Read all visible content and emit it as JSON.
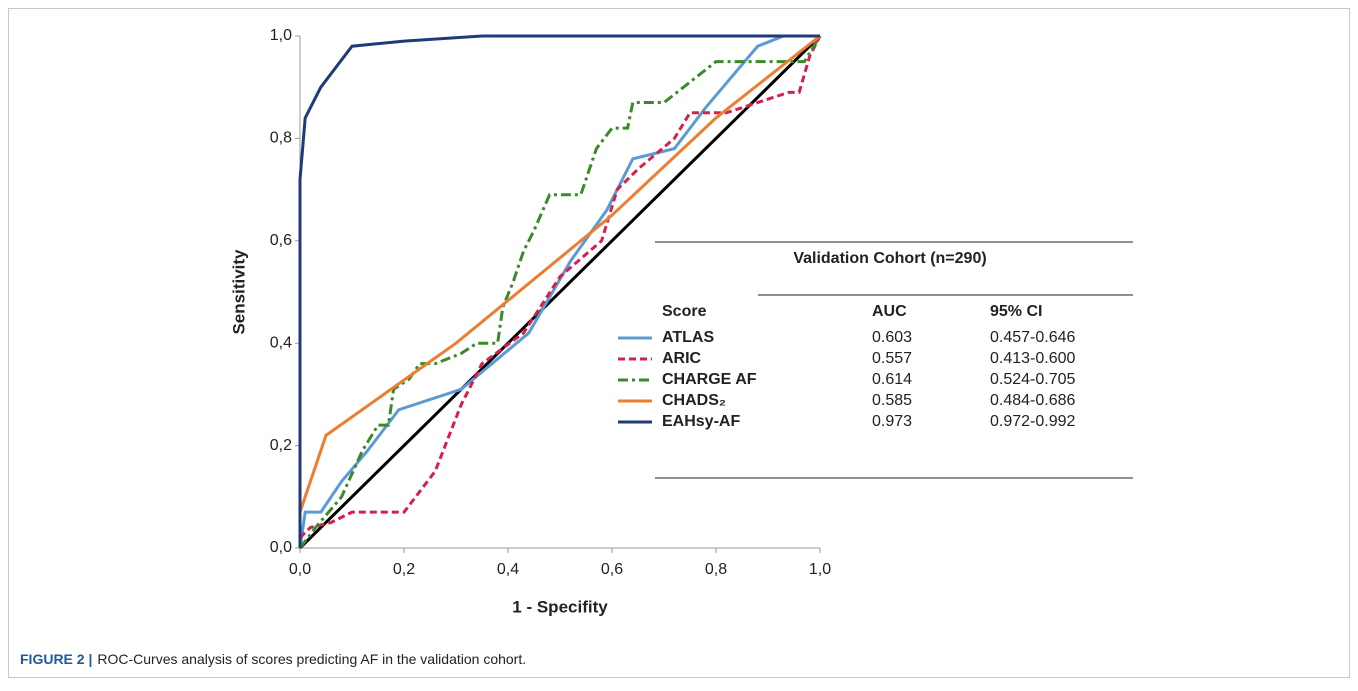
{
  "chart_data": {
    "type": "line",
    "x_label": "1 - Specifity",
    "y_label": "Sensitivity",
    "xlim": [
      0,
      1
    ],
    "ylim": [
      0,
      1
    ],
    "xticks": [
      {
        "value": 0,
        "label": "0,0"
      },
      {
        "value": 0.2,
        "label": "0,2"
      },
      {
        "value": 0.4,
        "label": "0,4"
      },
      {
        "value": 0.6,
        "label": "0,6"
      },
      {
        "value": 0.8,
        "label": "0,8"
      },
      {
        "value": 1,
        "label": "1,0"
      }
    ],
    "yticks": [
      {
        "value": 0,
        "label": "0,0"
      },
      {
        "value": 0.2,
        "label": "0,2"
      },
      {
        "value": 0.4,
        "label": "0,4"
      },
      {
        "value": 0.6,
        "label": "0,6"
      },
      {
        "value": 0.8,
        "label": "0,8"
      },
      {
        "value": 1,
        "label": "1,0"
      }
    ],
    "table_title": "Validation Cohort (n=290)",
    "columns": [
      "Score",
      "AUC",
      "95% CI"
    ],
    "series": [
      {
        "name": "ATLAS",
        "color": "#5b9bd5",
        "dash": "solid",
        "auc": 0.603,
        "ci": "0.457-0.646",
        "x": [
          0,
          0.01,
          0.04,
          0.08,
          0.13,
          0.19,
          0.31,
          0.44,
          0.52,
          0.59,
          0.64,
          0.72,
          0.78,
          0.88,
          0.93,
          1
        ],
        "values": [
          0,
          0.07,
          0.07,
          0.13,
          0.19,
          0.27,
          0.31,
          0.42,
          0.56,
          0.66,
          0.76,
          0.78,
          0.86,
          0.98,
          1,
          1
        ]
      },
      {
        "name": "ARIC",
        "color": "#d6204a",
        "dash": "dashed",
        "auc": 0.557,
        "ci": "0.413-0.600",
        "x": [
          0,
          0.02,
          0.06,
          0.1,
          0.2,
          0.26,
          0.31,
          0.35,
          0.43,
          0.5,
          0.58,
          0.61,
          0.65,
          0.72,
          0.75,
          0.82,
          0.94,
          0.96,
          0.98,
          1
        ],
        "values": [
          0.02,
          0.04,
          0.05,
          0.07,
          0.07,
          0.15,
          0.28,
          0.36,
          0.42,
          0.53,
          0.6,
          0.7,
          0.74,
          0.8,
          0.85,
          0.85,
          0.89,
          0.89,
          0.96,
          1
        ]
      },
      {
        "name": "CHARGE AF",
        "color": "#3a8a2a",
        "dash": "dashdot",
        "auc": 0.614,
        "ci": "0.524-0.705",
        "x": [
          0,
          0.03,
          0.08,
          0.12,
          0.15,
          0.17,
          0.18,
          0.21,
          0.23,
          0.26,
          0.31,
          0.34,
          0.38,
          0.39,
          0.41,
          0.43,
          0.45,
          0.48,
          0.54,
          0.57,
          0.6,
          0.63,
          0.64,
          0.7,
          0.75,
          0.8,
          0.9,
          0.97,
          1
        ],
        "values": [
          0,
          0.04,
          0.1,
          0.19,
          0.24,
          0.24,
          0.31,
          0.33,
          0.36,
          0.36,
          0.38,
          0.4,
          0.4,
          0.47,
          0.52,
          0.58,
          0.62,
          0.69,
          0.69,
          0.78,
          0.82,
          0.82,
          0.87,
          0.87,
          0.91,
          0.95,
          0.95,
          0.95,
          1
        ]
      },
      {
        "name": "CHADS₂",
        "color": "#ed7d31",
        "dash": "solid",
        "auc": 0.585,
        "ci": "0.484-0.686",
        "x": [
          0,
          0.05,
          0.3,
          0.6,
          0.8,
          1
        ],
        "values": [
          0.07,
          0.22,
          0.4,
          0.65,
          0.84,
          1
        ]
      },
      {
        "name": "EAHsy-AF",
        "color": "#1f3a7a",
        "dash": "solid",
        "auc": 0.973,
        "ci": "0.972-0.992",
        "x": [
          0,
          0,
          0.01,
          0.04,
          0.1,
          0.2,
          0.35,
          1
        ],
        "values": [
          0,
          0.72,
          0.84,
          0.9,
          0.98,
          0.99,
          1,
          1
        ]
      }
    ],
    "caption_label": "FIGURE 2 |",
    "caption_text": "ROC-Curves analysis of scores predicting AF in the validation cohort."
  }
}
